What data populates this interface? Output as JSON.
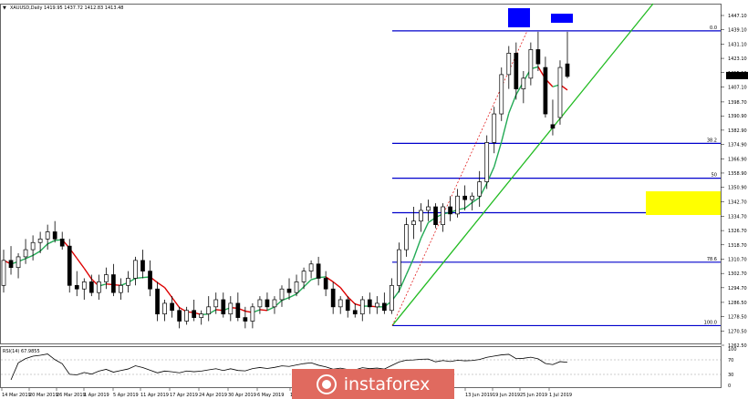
{
  "header": {
    "marker": "▼",
    "symbol": "XAUUSD,Daily",
    "ohlc": "1419.95 1437.72 1412.83 1413.48"
  },
  "rsi_label": "RSI(14) 67.9855",
  "rsi_axis": [
    "100",
    "70",
    "30",
    "0"
  ],
  "price_axis": [
    "1447.10",
    "1439.10",
    "1431.10",
    "1423.10",
    "1415.10",
    "1407.10",
    "1398.70",
    "1390.90",
    "1382.90",
    "1374.90",
    "1366.90",
    "1358.90",
    "1350.90",
    "1342.70",
    "1334.70",
    "1326.70",
    "1318.70",
    "1310.70",
    "1302.70",
    "1294.70",
    "1286.50",
    "1278.50",
    "1270.50",
    "1262.50"
  ],
  "current_price": "1413.48",
  "fib_labels": [
    "0.0",
    "38.2",
    "50",
    "61.8",
    "78.6",
    "100.0"
  ],
  "date_axis": [
    "14 Mar 2019",
    "20 Mar 2019",
    "26 Mar 2019",
    "1 Apr 2019",
    "5 Apr 2019",
    "11 Apr 2019",
    "17 Apr 2019",
    "24 Apr 2019",
    "30 Apr 2019",
    "6 May 2019",
    "1",
    "13 Jun 2019",
    "19 Jun 2019",
    "25 Jun 2019",
    "1 Jul 2019"
  ],
  "logo_text": "instaforex",
  "colors": {
    "bull": "#ffffff",
    "bear": "#000000",
    "fib": "#0000cc",
    "trend": "#22bb22",
    "ma_up": "#22aa55",
    "ma_down": "#dd0000",
    "highlight": "#ffff00",
    "marker": "#0000ff",
    "dotted": "#dd0000"
  },
  "chart_data": {
    "type": "candlestick",
    "symbol": "XAUUSD",
    "timeframe": "Daily",
    "ylim": [
      1262.5,
      1447.1
    ],
    "candles": [
      [
        1296,
        1316,
        1292,
        1310
      ],
      [
        1310,
        1318,
        1302,
        1306
      ],
      [
        1306,
        1314,
        1300,
        1312
      ],
      [
        1312,
        1322,
        1308,
        1316
      ],
      [
        1316,
        1324,
        1310,
        1320
      ],
      [
        1320,
        1326,
        1314,
        1322
      ],
      [
        1322,
        1330,
        1316,
        1326
      ],
      [
        1326,
        1332,
        1320,
        1322
      ],
      [
        1322,
        1326,
        1316,
        1318
      ],
      [
        1318,
        1322,
        1292,
        1296
      ],
      [
        1296,
        1304,
        1290,
        1294
      ],
      [
        1294,
        1300,
        1288,
        1298
      ],
      [
        1298,
        1302,
        1290,
        1292
      ],
      [
        1292,
        1302,
        1288,
        1298
      ],
      [
        1298,
        1306,
        1294,
        1302
      ],
      [
        1302,
        1308,
        1290,
        1292
      ],
      [
        1292,
        1300,
        1288,
        1296
      ],
      [
        1296,
        1304,
        1292,
        1300
      ],
      [
        1300,
        1312,
        1296,
        1310
      ],
      [
        1310,
        1316,
        1300,
        1304
      ],
      [
        1304,
        1310,
        1290,
        1294
      ],
      [
        1294,
        1298,
        1276,
        1280
      ],
      [
        1280,
        1288,
        1276,
        1286
      ],
      [
        1286,
        1290,
        1278,
        1282
      ],
      [
        1282,
        1284,
        1272,
        1276
      ],
      [
        1276,
        1284,
        1274,
        1282
      ],
      [
        1282,
        1288,
        1276,
        1278
      ],
      [
        1278,
        1282,
        1274,
        1280
      ],
      [
        1280,
        1290,
        1276,
        1284
      ],
      [
        1284,
        1292,
        1280,
        1288
      ],
      [
        1288,
        1292,
        1278,
        1280
      ],
      [
        1280,
        1290,
        1276,
        1286
      ],
      [
        1286,
        1292,
        1276,
        1278
      ],
      [
        1278,
        1284,
        1272,
        1276
      ],
      [
        1276,
        1286,
        1272,
        1284
      ],
      [
        1284,
        1290,
        1280,
        1288
      ],
      [
        1288,
        1292,
        1282,
        1284
      ],
      [
        1284,
        1290,
        1280,
        1288
      ],
      [
        1288,
        1296,
        1284,
        1294
      ],
      [
        1294,
        1300,
        1288,
        1292
      ],
      [
        1292,
        1302,
        1290,
        1298
      ],
      [
        1298,
        1306,
        1294,
        1304
      ],
      [
        1304,
        1310,
        1300,
        1308
      ],
      [
        1308,
        1312,
        1296,
        1300
      ],
      [
        1300,
        1304,
        1290,
        1294
      ],
      [
        1294,
        1298,
        1280,
        1284
      ],
      [
        1284,
        1290,
        1280,
        1288
      ],
      [
        1288,
        1290,
        1278,
        1282
      ],
      [
        1282,
        1286,
        1278,
        1280
      ],
      [
        1280,
        1290,
        1276,
        1288
      ],
      [
        1288,
        1292,
        1280,
        1284
      ],
      [
        1284,
        1290,
        1280,
        1286
      ],
      [
        1286,
        1292,
        1280,
        1282
      ],
      [
        1282,
        1300,
        1280,
        1296
      ],
      [
        1296,
        1320,
        1292,
        1316
      ],
      [
        1316,
        1334,
        1312,
        1330
      ],
      [
        1330,
        1340,
        1322,
        1332
      ],
      [
        1332,
        1342,
        1326,
        1338
      ],
      [
        1338,
        1344,
        1332,
        1340
      ],
      [
        1340,
        1342,
        1328,
        1330
      ],
      [
        1330,
        1342,
        1326,
        1340
      ],
      [
        1340,
        1346,
        1332,
        1336
      ],
      [
        1336,
        1350,
        1334,
        1346
      ],
      [
        1346,
        1352,
        1338,
        1344
      ],
      [
        1344,
        1348,
        1338,
        1346
      ],
      [
        1346,
        1360,
        1340,
        1354
      ],
      [
        1354,
        1380,
        1350,
        1376
      ],
      [
        1376,
        1396,
        1370,
        1392
      ],
      [
        1392,
        1418,
        1388,
        1414
      ],
      [
        1414,
        1430,
        1406,
        1426
      ],
      [
        1426,
        1432,
        1400,
        1406
      ],
      [
        1406,
        1416,
        1398,
        1412
      ],
      [
        1412,
        1432,
        1408,
        1428
      ],
      [
        1428,
        1438,
        1416,
        1420
      ],
      [
        1418,
        1424,
        1390,
        1392
      ],
      [
        1386,
        1400,
        1380,
        1384
      ],
      [
        1390,
        1422,
        1386,
        1418
      ],
      [
        1420,
        1438,
        1412,
        1413
      ]
    ],
    "fib_levels": {
      "0.0": 1438.5,
      "38.2": 1375.5,
      "50": 1356,
      "61.8": 1336.7,
      "78.6": 1309,
      "100.0": 1273.5
    },
    "rsi_value": 67.9855,
    "rsi_axis_values": [
      100,
      70,
      30,
      0
    ]
  }
}
